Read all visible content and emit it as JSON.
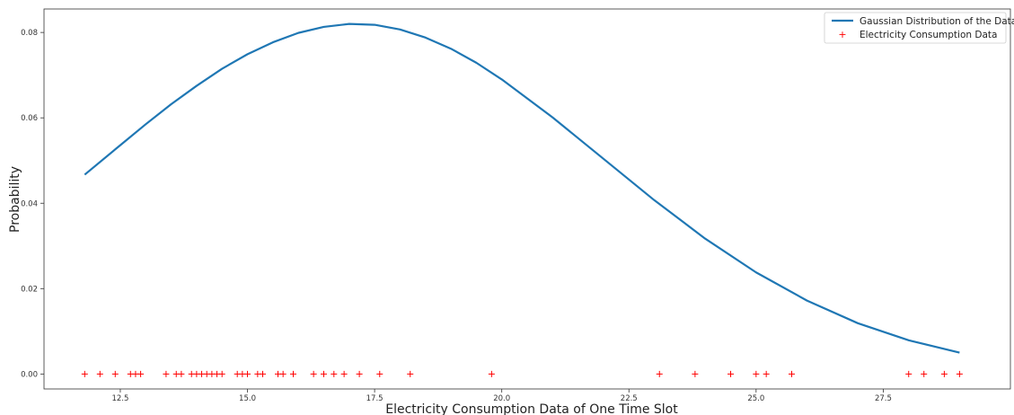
{
  "chart_data": {
    "type": "line",
    "title": "",
    "xlabel": "Electricity Consumption Data of One Time Slot",
    "ylabel": "Probability",
    "xlim": [
      11.0,
      30.0
    ],
    "ylim": [
      -0.0035,
      0.0855
    ],
    "xticks": [
      12.5,
      15.0,
      17.5,
      20.0,
      22.5,
      25.0,
      27.5
    ],
    "xtick_labels": [
      "12.5",
      "15.0",
      "17.5",
      "20.0",
      "22.5",
      "25.0",
      "27.5"
    ],
    "yticks": [
      0.0,
      0.02,
      0.04,
      0.06,
      0.08
    ],
    "ytick_labels": [
      "0.00",
      "0.02",
      "0.04",
      "0.06",
      "0.08"
    ],
    "grid": false,
    "legend_position": "top-right",
    "series": [
      {
        "name": "Gaussian Distribution of the Data",
        "kind": "line",
        "color": "#1f77b4",
        "x": [
          11.8,
          12.5,
          13.0,
          13.5,
          14.0,
          14.5,
          15.0,
          15.5,
          16.0,
          16.5,
          17.0,
          17.5,
          18.0,
          18.5,
          19.0,
          19.5,
          20.0,
          21.0,
          22.0,
          23.0,
          24.0,
          25.0,
          26.0,
          27.0,
          28.0,
          29.0
        ],
        "y": [
          0.0467,
          0.0536,
          0.0585,
          0.0632,
          0.0675,
          0.0715,
          0.0749,
          0.0777,
          0.0799,
          0.0813,
          0.082,
          0.0818,
          0.0807,
          0.0788,
          0.0762,
          0.0729,
          0.069,
          0.0601,
          0.0504,
          0.0407,
          0.0317,
          0.0238,
          0.0172,
          0.0119,
          0.0079,
          0.005
        ]
      },
      {
        "name": "Electricity Consumption Data",
        "kind": "scatter",
        "marker": "+",
        "color": "#ff0000",
        "x": [
          11.8,
          12.1,
          12.4,
          12.7,
          12.8,
          12.9,
          13.4,
          13.6,
          13.7,
          13.9,
          14.0,
          14.1,
          14.2,
          14.3,
          14.4,
          14.5,
          14.8,
          14.9,
          15.0,
          15.2,
          15.3,
          15.6,
          15.7,
          15.9,
          16.3,
          16.5,
          16.7,
          16.9,
          17.2,
          17.6,
          18.2,
          19.8,
          23.1,
          23.8,
          24.5,
          25.0,
          25.2,
          25.7,
          28.0,
          28.3,
          28.7,
          29.0
        ],
        "y": [
          0,
          0,
          0,
          0,
          0,
          0,
          0,
          0,
          0,
          0,
          0,
          0,
          0,
          0,
          0,
          0,
          0,
          0,
          0,
          0,
          0,
          0,
          0,
          0,
          0,
          0,
          0,
          0,
          0,
          0,
          0,
          0,
          0,
          0,
          0,
          0,
          0,
          0,
          0,
          0,
          0,
          0
        ]
      }
    ]
  }
}
